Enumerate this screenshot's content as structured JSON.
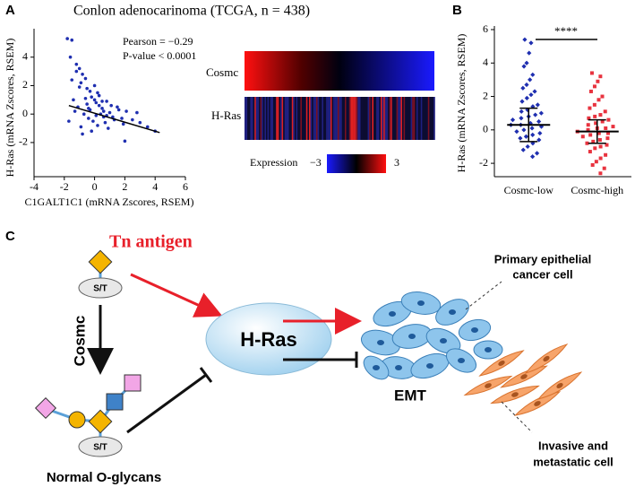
{
  "panels": {
    "a": "A",
    "b": "B",
    "c": "C"
  },
  "chart_data": [
    {
      "type": "scatter",
      "title": "Conlon adenocarinoma (TCGA, n = 438)",
      "x_label": "C1GALT1C1 (mRNA Zscores, RSEM)",
      "y_label": "H-Ras (mRNA Zscores, RSEM)",
      "annotations": [
        "Pearson = −0.29",
        "P-value < 0.0001"
      ],
      "color": "#1f2fb0",
      "x": [
        -1.8,
        -1.5,
        -1.6,
        -1.2,
        -1.0,
        -0.8,
        -0.9,
        -0.6,
        -0.5,
        -0.3,
        -0.2,
        0.0,
        0.1,
        0.2,
        0.3,
        0.5,
        0.6,
        0.8,
        1.0,
        1.2,
        1.5,
        1.8,
        2.1,
        2.5,
        3.0,
        3.5,
        4.0,
        -1.4,
        -1.1,
        -0.7,
        -0.4,
        -0.1,
        0.2,
        0.4,
        0.7,
        0.9,
        1.3,
        1.6,
        2.0,
        2.8,
        -1.7,
        -1.3,
        -0.9,
        -0.5,
        -0.2,
        0.0,
        0.3,
        0.6,
        1.1,
        1.9,
        -1.5,
        -1.0,
        -0.6,
        -0.3,
        0.1,
        0.5,
        -0.8,
        -0.4,
        0.8,
        -1.2
      ],
      "values": [
        5.3,
        5.2,
        4.0,
        3.5,
        3.2,
        2.8,
        2.2,
        2.5,
        1.8,
        1.6,
        1.2,
        1.0,
        0.8,
        1.5,
        0.6,
        0.4,
        0.2,
        0.9,
        0.1,
        -0.2,
        0.5,
        -0.3,
        0.2,
        -0.4,
        -0.6,
        -0.9,
        -1.2,
        1.0,
        0.5,
        0.0,
        -0.3,
        -0.5,
        -0.8,
        0.0,
        -0.6,
        -1.0,
        -0.4,
        0.3,
        -1.9,
        0.1,
        -0.5,
        0.2,
        -0.9,
        0.7,
        -1.2,
        2.0,
        1.3,
        -0.2,
        0.6,
        -0.7,
        2.4,
        1.9,
        1.1,
        0.3,
        -0.1,
        0.9,
        -1.4,
        0.4,
        -0.1,
        3.0
      ],
      "trend_line": {
        "x": [
          -1.7,
          4.3
        ],
        "values": [
          0.6,
          -1.3
        ]
      },
      "xlim": [
        -4,
        6
      ],
      "xticks": [
        -4,
        -2,
        0,
        2,
        4,
        6
      ],
      "ylim": [
        -4.4,
        6
      ],
      "yticks": [
        -2,
        0,
        2,
        4
      ]
    },
    {
      "type": "strip",
      "y_label": "H-Ras (mRNA Zscores, RSEM)",
      "categories": [
        "Cosmc-low",
        "Cosmc-high"
      ],
      "significance": "****",
      "groups": [
        {
          "color": "#1f2fb0",
          "mean": 0.3,
          "sd": 1.0,
          "values": [
            5.4,
            5.2,
            4.6,
            4.0,
            3.8,
            3.3,
            3.0,
            2.7,
            2.5,
            2.3,
            2.1,
            1.9,
            1.7,
            1.5,
            1.4,
            1.2,
            1.1,
            1.0,
            0.9,
            0.8,
            0.7,
            0.6,
            0.5,
            0.4,
            0.3,
            0.3,
            0.2,
            0.1,
            0.0,
            -0.1,
            -0.2,
            -0.3,
            -0.4,
            -0.5,
            -0.6,
            -0.8,
            -1.0,
            -1.2,
            -1.4,
            -1.6
          ]
        },
        {
          "color": "#e8333f",
          "mean": -0.1,
          "sd": 0.7,
          "values": [
            3.4,
            3.2,
            2.9,
            2.6,
            2.3,
            2.0,
            1.8,
            1.5,
            1.3,
            1.1,
            0.9,
            0.8,
            0.7,
            0.6,
            0.5,
            0.4,
            0.3,
            0.2,
            0.1,
            0.1,
            0.0,
            -0.1,
            -0.2,
            -0.2,
            -0.3,
            -0.4,
            -0.5,
            -0.6,
            -0.7,
            -0.8,
            -0.9,
            -1.0,
            -1.1,
            -1.3,
            -1.5,
            -1.7,
            -1.9,
            -2.1,
            -2.3,
            -2.6
          ]
        }
      ],
      "ylim": [
        -2.8,
        6
      ],
      "yticks": [
        -2,
        0,
        2,
        4,
        6
      ]
    }
  ],
  "heatmap": {
    "rows": [
      "Cosmc",
      "H-Ras"
    ],
    "legend_title": "Expression",
    "legend_ticks": [
      {
        "value": -3,
        "label": "−3"
      },
      3
    ]
  },
  "diagram": {
    "tn_antigen": "Tn antigen",
    "site_top": "S/T",
    "enzyme": "Cosmc",
    "site_bottom": "S/T",
    "normal": "Normal O-glycans",
    "target": "H-Ras",
    "emt": "EMT",
    "primary": [
      "Primary epithelial",
      "cancer cell"
    ],
    "invasive": [
      "Invasive and",
      "metastatic cell"
    ]
  }
}
